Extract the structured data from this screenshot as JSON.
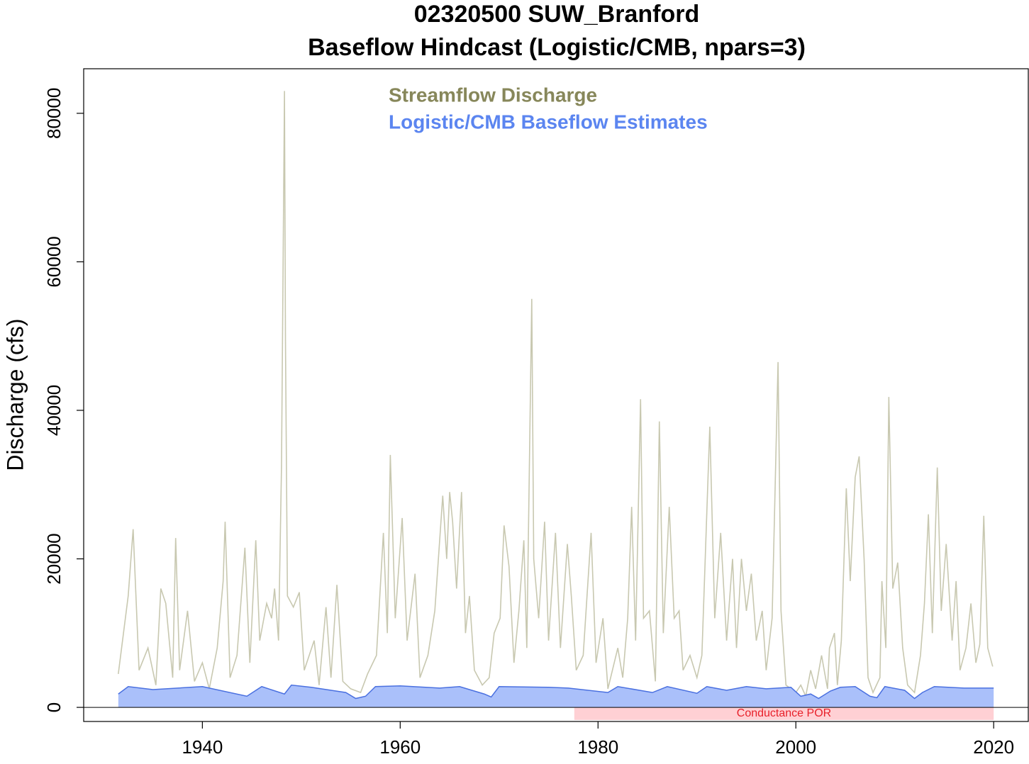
{
  "chart_data": {
    "type": "line",
    "title": "02320500 SUW_Branford",
    "subtitle": "Baseflow Hindcast (Logistic/CMB, npars=3)",
    "y_label": "Discharge (cfs)",
    "xlim": [
      1928,
      2023.5
    ],
    "ylim": [
      -1900,
      86000
    ],
    "xticks": [
      1940,
      1960,
      1980,
      2000,
      2020
    ],
    "yticks": [
      0,
      20000,
      40000,
      60000,
      80000
    ],
    "hline": 0,
    "legend": "top-center",
    "shaded_periods": [
      {
        "label": "Conductance POR",
        "x": [
          1977.6,
          2020
        ],
        "y": [
          -1700,
          0
        ],
        "color": "#ffd0d4",
        "label_color": "#e8202a"
      }
    ],
    "series": [
      {
        "name": "Streamflow Discharge",
        "color": "#c8c8b0",
        "legend_color": "#87875a",
        "x": [
          1931.5,
          1932.5,
          1933.0,
          1933.6,
          1934.5,
          1935.3,
          1935.8,
          1936.3,
          1937.0,
          1937.3,
          1937.7,
          1938.5,
          1939.2,
          1940.0,
          1940.7,
          1941.5,
          1942.1,
          1942.3,
          1942.8,
          1943.5,
          1944.3,
          1944.8,
          1945.4,
          1945.8,
          1946.5,
          1947.0,
          1947.3,
          1947.7,
          1948.0,
          1948.3,
          1948.4,
          1948.6,
          1949.2,
          1949.8,
          1950.3,
          1951.3,
          1951.8,
          1952.5,
          1953.0,
          1953.6,
          1954.2,
          1955.0,
          1956.0,
          1956.7,
          1957.6,
          1958.3,
          1958.7,
          1959.0,
          1959.5,
          1960.2,
          1960.7,
          1961.5,
          1962.0,
          1962.8,
          1963.5,
          1964.3,
          1964.7,
          1965.0,
          1965.3,
          1965.7,
          1966.2,
          1966.6,
          1967.0,
          1967.5,
          1968.3,
          1969.0,
          1969.5,
          1970.1,
          1970.5,
          1971.0,
          1971.5,
          1972.0,
          1972.5,
          1972.8,
          1973.3,
          1973.5,
          1974.0,
          1974.6,
          1975.0,
          1975.7,
          1976.2,
          1976.9,
          1977.3,
          1977.8,
          1978.5,
          1979.3,
          1979.8,
          1980.5,
          1981.0,
          1982.0,
          1982.5,
          1983.0,
          1983.4,
          1983.8,
          1984.3,
          1984.6,
          1985.2,
          1985.8,
          1986.2,
          1986.6,
          1987.2,
          1987.7,
          1988.2,
          1988.6,
          1989.3,
          1990.0,
          1990.5,
          1991.2,
          1991.3,
          1991.8,
          1992.4,
          1993.0,
          1993.6,
          1994.0,
          1994.5,
          1995.0,
          1995.5,
          1996.0,
          1996.6,
          1997.0,
          1997.6,
          1998.2,
          1998.5,
          1999.0,
          2000.0,
          2000.5,
          2001.0,
          2001.5,
          2002.0,
          2002.6,
          2003.2,
          2003.4,
          2003.9,
          2004.2,
          2004.6,
          2005.1,
          2005.5,
          2006.0,
          2006.4,
          2006.9,
          2007.3,
          2007.8,
          2008.5,
          2008.7,
          2009.1,
          2009.4,
          2009.8,
          2010.3,
          2010.8,
          2011.3,
          2012.0,
          2012.6,
          2013.0,
          2013.4,
          2013.8,
          2014.3,
          2014.7,
          2015.2,
          2015.8,
          2016.2,
          2016.6,
          2017.2,
          2017.7,
          2018.2,
          2018.6,
          2019.0,
          2019.4,
          2019.9
        ],
        "values": [
          4500,
          15000,
          24000,
          5000,
          8000,
          3000,
          16000,
          14000,
          4000,
          22800,
          5000,
          13000,
          3500,
          6000,
          2500,
          8000,
          17000,
          25000,
          4000,
          7000,
          21500,
          6000,
          22500,
          9000,
          14000,
          12000,
          16000,
          9000,
          32500,
          83000,
          49500,
          15000,
          13500,
          15500,
          5000,
          9000,
          3000,
          13500,
          4000,
          16500,
          3500,
          2500,
          2000,
          4500,
          7000,
          23500,
          10000,
          34000,
          12000,
          25500,
          9000,
          18000,
          4000,
          7000,
          13000,
          28500,
          20000,
          29000,
          25000,
          16000,
          29000,
          10000,
          15000,
          5000,
          3000,
          4000,
          10000,
          12000,
          24500,
          19000,
          6000,
          13000,
          22500,
          8000,
          55000,
          20000,
          12000,
          25000,
          9000,
          23500,
          8000,
          22000,
          15000,
          5000,
          7000,
          23500,
          6000,
          12000,
          2500,
          8000,
          4000,
          12000,
          27000,
          9000,
          41500,
          12000,
          13000,
          3500,
          38500,
          10000,
          27000,
          12000,
          13000,
          5000,
          7000,
          4000,
          7000,
          34000,
          37800,
          12000,
          23500,
          9000,
          20000,
          8000,
          20000,
          13000,
          18000,
          9000,
          13000,
          5000,
          12000,
          46500,
          13000,
          3000,
          2000,
          3000,
          1500,
          5000,
          2500,
          7000,
          2500,
          8000,
          10000,
          3000,
          9000,
          29500,
          17000,
          31000,
          33800,
          20000,
          4000,
          2000,
          4000,
          17000,
          8000,
          41800,
          16000,
          19500,
          8000,
          3000,
          2000,
          7000,
          14000,
          26000,
          10000,
          32300,
          13000,
          22000,
          9000,
          17000,
          5000,
          8000,
          14000,
          6000,
          8500,
          25800,
          8000,
          5500
        ]
      },
      {
        "name": "Logistic/CMB Baseflow Estimates",
        "color": "#4a70e0",
        "legend_color": "#5b85f0",
        "fill": "#aac0fa",
        "x": [
          1931.5,
          1932.5,
          1935,
          1940,
          1944.5,
          1946,
          1948.3,
          1949,
          1951,
          1954.5,
          1955.5,
          1956.5,
          1957.5,
          1960,
          1964,
          1966,
          1968.5,
          1969.2,
          1970,
          1975,
          1977,
          1981,
          1982,
          1985.5,
          1987,
          1990,
          1991,
          1993,
          1995,
          1997,
          1999.5,
          2000.5,
          2001.5,
          2002.3,
          2003.5,
          2004.5,
          2006,
          2007.5,
          2008.2,
          2009,
          2011,
          2012,
          2012.8,
          2014,
          2017,
          2020
        ],
        "values": [
          1800,
          2800,
          2400,
          2800,
          1500,
          2800,
          1800,
          3000,
          2700,
          2000,
          1200,
          1500,
          2800,
          2900,
          2600,
          2800,
          1800,
          1400,
          2800,
          2700,
          2600,
          2000,
          2800,
          2000,
          2800,
          1900,
          2800,
          2300,
          2800,
          2500,
          2700,
          1500,
          1800,
          1200,
          2200,
          2700,
          2800,
          1500,
          1300,
          2800,
          2300,
          1200,
          2000,
          2800,
          2600,
          2600
        ]
      }
    ]
  }
}
